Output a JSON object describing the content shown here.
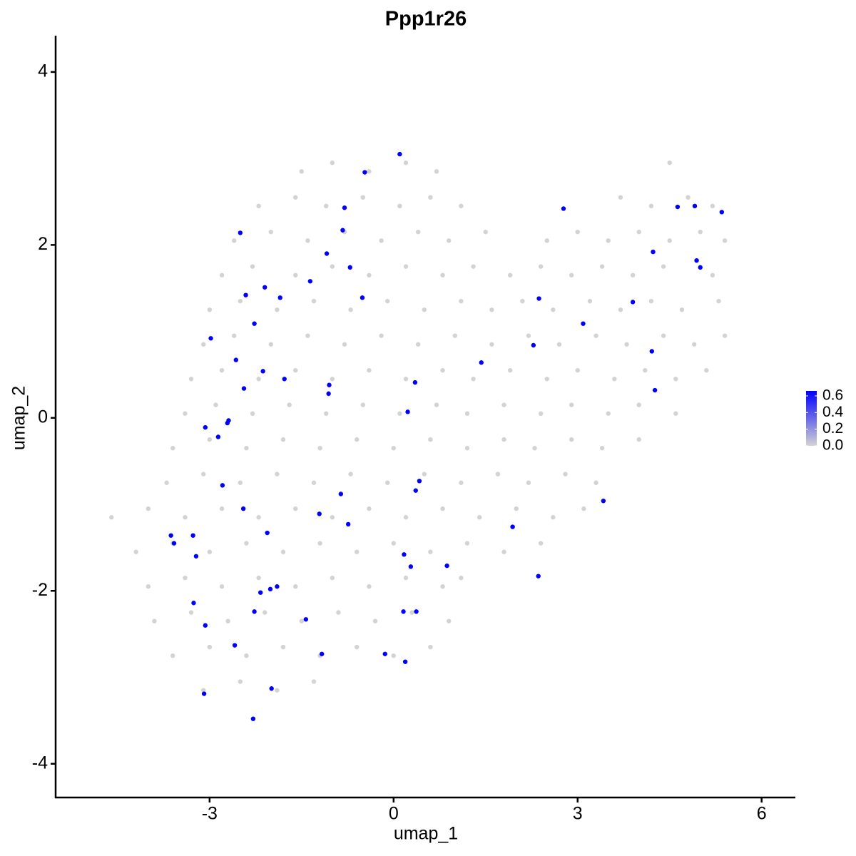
{
  "chart_data": {
    "type": "scatter",
    "title": "Ppp1r26",
    "x_label": "umap_1",
    "y_label": "umap_2",
    "xlim": [
      -5.51,
      6.55
    ],
    "ylim": [
      -4.39,
      4.42
    ],
    "xticks": [
      -3,
      0,
      3,
      6
    ],
    "yticks": [
      -4,
      -2,
      0,
      2,
      4
    ],
    "low_color": "#d3d3d3",
    "high_color": "#0000ff",
    "colorbar_lim": [
      0,
      0.66
    ],
    "colorbar_ticks": [
      {
        "value": 0,
        "label": "0.0"
      },
      0.2,
      0.4,
      0.6
    ],
    "x": [
      -1.5,
      -1.0,
      -0.4,
      0.2,
      0.7,
      4.5,
      -2.2,
      -1.6,
      -1.1,
      -0.5,
      0.1,
      0.6,
      1.1,
      3.7,
      4.2,
      4.8,
      5.2,
      -2.6,
      -2.0,
      -1.4,
      -0.8,
      -0.2,
      0.4,
      0.9,
      1.5,
      2.5,
      3.0,
      3.5,
      4.0,
      4.5,
      5.0,
      5.4,
      -2.8,
      -2.3,
      -1.6,
      -1.0,
      -0.4,
      0.2,
      0.8,
      1.3,
      1.9,
      2.4,
      2.9,
      3.4,
      3.9,
      4.4,
      5.2,
      -3.0,
      -2.5,
      -1.9,
      -1.3,
      -0.7,
      -0.1,
      0.5,
      1.1,
      1.6,
      2.1,
      2.6,
      3.2,
      3.7,
      4.2,
      4.7,
      5.3,
      -3.1,
      -2.6,
      -2.0,
      -1.4,
      -0.8,
      -0.2,
      0.4,
      1.0,
      1.6,
      2.2,
      2.7,
      3.3,
      3.8,
      4.4,
      4.9,
      5.4,
      -3.3,
      -2.8,
      -2.2,
      -1.6,
      -1.0,
      -0.4,
      0.2,
      0.8,
      1.3,
      1.9,
      2.5,
      3.0,
      3.6,
      4.1,
      4.6,
      5.1,
      -3.4,
      -2.9,
      -2.3,
      -1.7,
      -1.1,
      -0.5,
      0.1,
      0.7,
      1.2,
      1.8,
      2.4,
      2.9,
      3.5,
      4.0,
      4.6,
      -3.6,
      -3.0,
      -2.4,
      -1.8,
      -1.2,
      -0.6,
      0,
      0.6,
      1.2,
      1.8,
      2.3,
      2.9,
      3.4,
      4.0,
      -3.7,
      -3.1,
      -2.5,
      -1.9,
      -1.3,
      -0.7,
      -0.1,
      0.5,
      1.1,
      1.7,
      2.2,
      2.8,
      3.3,
      -4.6,
      -4.0,
      -3.4,
      -2.8,
      -2.2,
      -1.6,
      -1.0,
      -0.4,
      0.2,
      0.8,
      1.4,
      2.0,
      2.6,
      3.1,
      -4.2,
      -3.6,
      -3.0,
      -2.4,
      -1.8,
      -1.2,
      -0.6,
      0,
      0.6,
      1.2,
      1.8,
      2.4,
      -4.0,
      -3.4,
      -2.8,
      -2.2,
      -1.6,
      -1.0,
      -0.4,
      0.2,
      0.8,
      1.1,
      -3.9,
      -3.3,
      -2.7,
      -2.1,
      -1.5,
      -0.9,
      -0.3,
      0.3,
      0.9,
      -3.6,
      -3.0,
      -2.4,
      -1.8,
      -1.2,
      -0.6,
      0.0,
      0.6,
      -3.1,
      -2.5,
      -1.9,
      -1.3,
      0.1,
      -0.47,
      -0.8,
      -0.83,
      -2.5,
      -1.09,
      -0.71,
      -2.1,
      -2.41,
      -1.85,
      -1.36,
      -0.51,
      -2.27,
      -2.98,
      -2.57,
      -2.13,
      -1.78,
      -2.44,
      -1.05,
      -1.06,
      0.35,
      0.23,
      -2.69,
      -2.71,
      -3.07,
      -2.86,
      -2.79,
      0.42,
      0.36,
      -0.86,
      -2.45,
      -1.21,
      -0.74,
      -2.06,
      -3.63,
      -3.58,
      -3.27,
      -3.22,
      0.17,
      0.28,
      0.87,
      1.94,
      2.36,
      3.42,
      -1.9,
      -2.01,
      -2.17,
      -3.26,
      -2.27,
      0.16,
      0.37,
      -1.43,
      -3.07,
      -2.59,
      -1.17,
      -0.14,
      0.19,
      -1.99,
      -3.09,
      -2.29,
      2.77,
      1.43,
      2.28,
      2.37,
      3.09,
      3.9,
      4.23,
      4.21,
      4.26,
      4.63,
      4.91,
      5.35,
      4.94,
      5.0
    ],
    "y": [
      2.85,
      2.95,
      2.85,
      2.95,
      2.85,
      2.95,
      2.45,
      2.55,
      2.45,
      2.55,
      2.45,
      2.55,
      2.45,
      2.55,
      2.45,
      2.55,
      2.45,
      2.05,
      2.15,
      2.05,
      2.15,
      2.05,
      2.15,
      2.05,
      2.15,
      2.05,
      2.15,
      2.05,
      2.15,
      2.05,
      2.15,
      2.05,
      1.65,
      1.75,
      1.65,
      1.75,
      1.65,
      1.75,
      1.65,
      1.75,
      1.65,
      1.75,
      1.65,
      1.75,
      1.65,
      1.75,
      1.65,
      1.25,
      1.35,
      1.25,
      1.35,
      1.25,
      1.35,
      1.25,
      1.35,
      1.25,
      1.35,
      1.25,
      1.35,
      1.25,
      1.35,
      1.25,
      1.35,
      0.85,
      0.95,
      0.85,
      0.95,
      0.85,
      0.95,
      0.85,
      0.95,
      0.85,
      0.95,
      0.85,
      0.95,
      0.85,
      0.95,
      0.85,
      0.95,
      0.45,
      0.55,
      0.45,
      0.55,
      0.45,
      0.55,
      0.45,
      0.55,
      0.45,
      0.55,
      0.45,
      0.55,
      0.45,
      0.55,
      0.45,
      0.55,
      0.05,
      0.15,
      0.05,
      0.15,
      0.05,
      0.15,
      0.05,
      0.15,
      0.05,
      0.15,
      0.05,
      0.15,
      0.05,
      0.15,
      0.05,
      -0.35,
      -0.25,
      -0.35,
      -0.25,
      -0.35,
      -0.25,
      -0.35,
      -0.25,
      -0.35,
      -0.25,
      -0.35,
      -0.25,
      -0.35,
      -0.25,
      -0.75,
      -0.65,
      -0.75,
      -0.65,
      -0.75,
      -0.65,
      -0.75,
      -0.65,
      -0.75,
      -0.65,
      -0.75,
      -0.65,
      -0.75,
      -1.15,
      -1.05,
      -1.15,
      -1.05,
      -1.15,
      -1.05,
      -1.15,
      -1.05,
      -1.15,
      -1.05,
      -1.15,
      -1.05,
      -1.15,
      -1.05,
      -1.55,
      -1.45,
      -1.55,
      -1.45,
      -1.55,
      -1.45,
      -1.55,
      -1.45,
      -1.55,
      -1.45,
      -1.55,
      -1.45,
      -1.95,
      -1.85,
      -1.95,
      -1.85,
      -1.95,
      -1.85,
      -1.95,
      -1.85,
      -1.95,
      -1.85,
      -2.35,
      -2.25,
      -2.35,
      -2.25,
      -2.35,
      -2.25,
      -2.35,
      -2.25,
      -2.35,
      -2.75,
      -2.65,
      -2.75,
      -2.65,
      -2.75,
      -2.65,
      -2.75,
      -2.65,
      -3.15,
      -3.05,
      -3.15,
      -3.05,
      3.05,
      2.84,
      2.43,
      2.17,
      2.14,
      1.9,
      1.74,
      1.51,
      1.42,
      1.39,
      1.58,
      1.39,
      1.09,
      0.92,
      0.67,
      0.54,
      0.45,
      0.34,
      0.38,
      0.28,
      0.41,
      0.07,
      -0.03,
      -0.06,
      -0.11,
      -0.22,
      -0.78,
      -0.73,
      -0.84,
      -0.88,
      -1.05,
      -1.11,
      -1.23,
      -1.33,
      -1.36,
      -1.45,
      -1.36,
      -1.6,
      -1.58,
      -1.72,
      -1.71,
      -1.26,
      -1.83,
      -0.96,
      -1.95,
      -1.98,
      -2.02,
      -2.14,
      -2.24,
      -2.24,
      -2.24,
      -2.33,
      -2.4,
      -2.63,
      -2.73,
      -2.73,
      -2.82,
      -3.13,
      -3.19,
      -3.48,
      2.42,
      0.64,
      0.84,
      1.38,
      1.09,
      1.34,
      1.92,
      0.77,
      0.32,
      2.44,
      2.45,
      2.38,
      1.82,
      1.74
    ],
    "values": [
      0,
      0,
      0,
      0,
      0,
      0,
      0,
      0,
      0,
      0,
      0,
      0,
      0,
      0,
      0,
      0,
      0,
      0,
      0,
      0,
      0,
      0,
      0,
      0,
      0,
      0,
      0,
      0,
      0,
      0,
      0,
      0,
      0,
      0,
      0,
      0,
      0,
      0,
      0,
      0,
      0,
      0,
      0,
      0,
      0,
      0,
      0,
      0,
      0,
      0,
      0,
      0,
      0,
      0,
      0,
      0,
      0,
      0,
      0,
      0,
      0,
      0,
      0,
      0,
      0,
      0,
      0,
      0,
      0,
      0,
      0,
      0,
      0,
      0,
      0,
      0,
      0,
      0,
      0,
      0,
      0,
      0,
      0,
      0,
      0,
      0,
      0,
      0,
      0,
      0,
      0,
      0,
      0,
      0,
      0,
      0,
      0,
      0,
      0,
      0,
      0,
      0,
      0,
      0,
      0,
      0,
      0,
      0,
      0,
      0,
      0,
      0,
      0,
      0,
      0,
      0,
      0,
      0,
      0,
      0,
      0,
      0,
      0,
      0,
      0,
      0,
      0,
      0,
      0,
      0,
      0,
      0,
      0,
      0,
      0,
      0,
      0,
      0,
      0,
      0,
      0,
      0,
      0,
      0,
      0,
      0,
      0,
      0,
      0,
      0,
      0,
      0,
      0,
      0,
      0,
      0,
      0,
      0,
      0,
      0,
      0,
      0,
      0,
      0,
      0,
      0,
      0,
      0,
      0,
      0,
      0,
      0,
      0,
      0,
      0,
      0,
      0,
      0,
      0,
      0,
      0,
      0,
      0,
      0,
      0,
      0,
      0,
      0,
      0,
      0,
      0,
      0,
      0,
      0,
      0.66,
      0.66,
      0.66,
      0.66,
      0.66,
      0.66,
      0.66,
      0.66,
      0.66,
      0.66,
      0.66,
      0.66,
      0.66,
      0.66,
      0.66,
      0.66,
      0.66,
      0.66,
      0.66,
      0.66,
      0.66,
      0.66,
      0.66,
      0.66,
      0.66,
      0.66,
      0.66,
      0.66,
      0.66,
      0.66,
      0.66,
      0.66,
      0.66,
      0.66,
      0.66,
      0.66,
      0.66,
      0.66,
      0.66,
      0.66,
      0.66,
      0.66,
      0.66,
      0.66,
      0.66,
      0.66,
      0.66,
      0.66,
      0.66,
      0.66,
      0.66,
      0.66,
      0.66,
      0.66,
      0.66,
      0.66,
      0.66,
      0.66,
      0.66,
      0.66,
      0.66,
      0.66,
      0.66,
      0.66,
      0.66,
      0.66,
      0.66,
      0.66,
      0.66,
      0.66,
      0.66,
      0.66,
      0.66,
      0.66
    ]
  }
}
